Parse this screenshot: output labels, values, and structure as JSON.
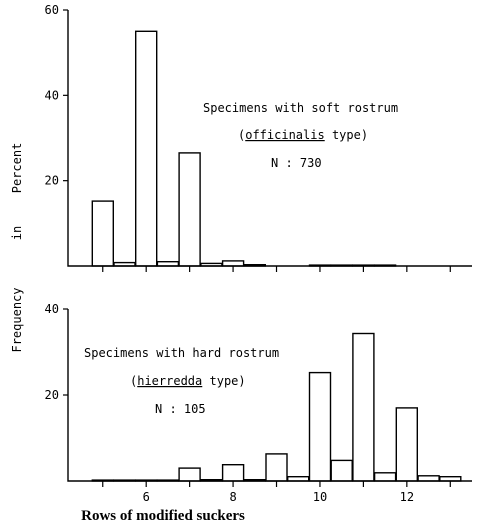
{
  "chart_data": [
    {
      "type": "bar",
      "title": "",
      "ylim": [
        0,
        60
      ],
      "yticks": [
        20,
        40,
        60
      ],
      "xlim": [
        4.2,
        13.5
      ],
      "annotation": {
        "line1": "Specimens with soft rostrum",
        "line2_pre": "(",
        "line2_u": "officinalis",
        "line2_post": " type)",
        "line3": "N : 730"
      },
      "bars": [
        {
          "x": 5,
          "value": 15.2
        },
        {
          "x": 5.5,
          "value": 0.8
        },
        {
          "x": 6,
          "value": 55
        },
        {
          "x": 6.5,
          "value": 1
        },
        {
          "x": 7,
          "value": 26.5
        },
        {
          "x": 7.5,
          "value": 0.6
        },
        {
          "x": 8,
          "value": 1.2
        },
        {
          "x": 8.5,
          "value": 0.3
        },
        {
          "x": 10,
          "value": 0.2
        },
        {
          "x": 10.5,
          "value": 0.2
        },
        {
          "x": 11,
          "value": 0.2
        },
        {
          "x": 11.5,
          "value": 0.2
        }
      ]
    },
    {
      "type": "bar",
      "title": "",
      "ylim": [
        0,
        40
      ],
      "yticks": [
        20,
        40
      ],
      "xlim": [
        4.2,
        13.5
      ],
      "xticks": [
        6,
        8,
        10,
        12
      ],
      "xticks_minor": [
        5,
        7,
        9,
        11,
        13
      ],
      "annotation": {
        "line1": "Specimens with hard rostrum",
        "line2_pre": "(",
        "line2_u": "hierredda",
        "line2_post": " type)",
        "line3": "N : 105"
      },
      "bars": [
        {
          "x": 5,
          "value": 0.2
        },
        {
          "x": 5.5,
          "value": 0.2
        },
        {
          "x": 6,
          "value": 0.2
        },
        {
          "x": 6.5,
          "value": 0.2
        },
        {
          "x": 7,
          "value": 3
        },
        {
          "x": 7.5,
          "value": 0.3
        },
        {
          "x": 8,
          "value": 3.8
        },
        {
          "x": 8.5,
          "value": 0.3
        },
        {
          "x": 9,
          "value": 6.3
        },
        {
          "x": 9.5,
          "value": 1
        },
        {
          "x": 10,
          "value": 25.2
        },
        {
          "x": 10.5,
          "value": 4.8
        },
        {
          "x": 11,
          "value": 34.3
        },
        {
          "x": 11.5,
          "value": 1.9
        },
        {
          "x": 12,
          "value": 17
        },
        {
          "x": 12.5,
          "value": 1.2
        },
        {
          "x": 13,
          "value": 1
        }
      ]
    }
  ],
  "ylabel": {
    "top": "Percent",
    "mid": "in",
    "bottom": "Frequency"
  },
  "xlabel": "Rows of modified suckers"
}
